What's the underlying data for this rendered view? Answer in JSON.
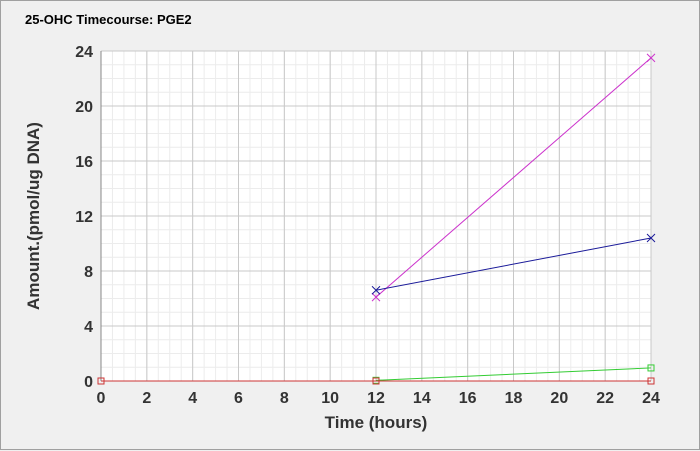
{
  "chart_data": {
    "type": "line",
    "title": "25-OHC Timecourse: PGE2",
    "xlabel": "Time (hours)",
    "ylabel": "Amount.(pmol/ug DNA)",
    "xlim": [
      0,
      24
    ],
    "ylim": [
      0,
      24
    ],
    "xticks": [
      0,
      2,
      4,
      6,
      8,
      10,
      12,
      14,
      16,
      18,
      20,
      22,
      24
    ],
    "yticks": [
      0,
      4,
      8,
      12,
      16,
      20,
      24
    ],
    "grid": true,
    "series": [
      {
        "color": "#cc33cc",
        "marker": "x",
        "x": [
          12,
          24
        ],
        "y": [
          6.1,
          23.5
        ]
      },
      {
        "color": "#1a1a99",
        "marker": "x",
        "x": [
          12,
          24
        ],
        "y": [
          6.6,
          10.4
        ]
      },
      {
        "color": "#33cc33",
        "marker": "square",
        "x": [
          12,
          24
        ],
        "y": [
          0.05,
          0.95
        ]
      },
      {
        "color": "#cc3333",
        "marker": "square",
        "x": [
          0,
          12,
          24
        ],
        "y": [
          0,
          0,
          0
        ]
      }
    ]
  }
}
